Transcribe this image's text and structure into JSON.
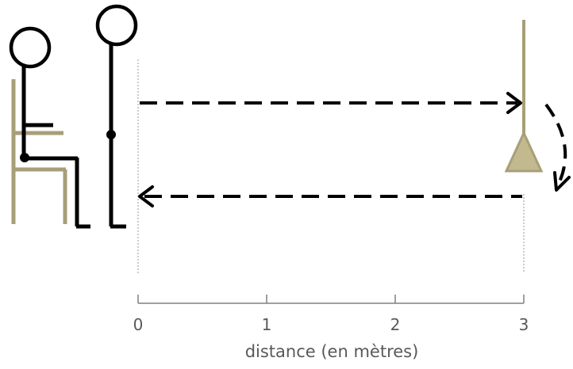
{
  "axis": {
    "ticks": [
      "0",
      "1",
      "2",
      "3"
    ],
    "title": "distance (en mètres)"
  },
  "colors": {
    "ink": "#000000",
    "chair": "#a89e78",
    "cone_fill": "#c2b98e",
    "guide": "#999999",
    "axis": "#808080",
    "label": "#595959"
  },
  "icons": {
    "seated_person": "stick-figure-seated-on-chair",
    "standing_person": "stick-figure-standing",
    "marker": "cone-on-pole"
  }
}
